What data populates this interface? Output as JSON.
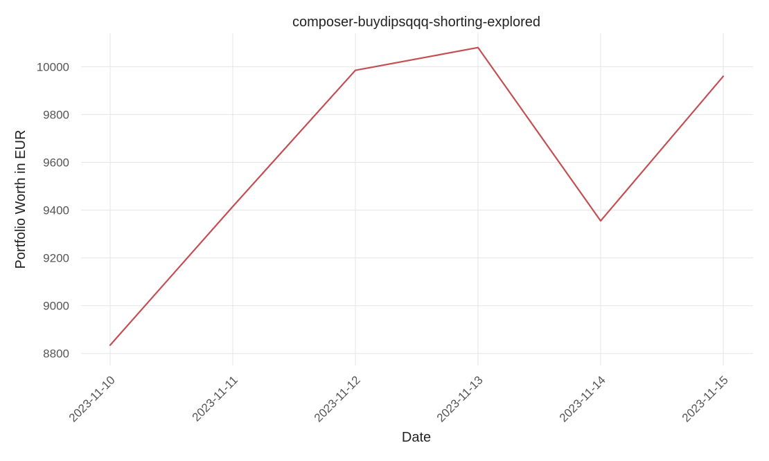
{
  "chart_data": {
    "type": "line",
    "title": "composer-buydipsqqq-shorting-explored",
    "xlabel": "Date",
    "ylabel": "Portfolio Worth in EUR",
    "x": [
      "2023-11-10",
      "2023-11-11",
      "2023-11-12",
      "2023-11-13",
      "2023-11-14",
      "2023-11-15"
    ],
    "series": [
      {
        "values": [
          8835,
          9415,
          9985,
          10080,
          9355,
          9960
        ],
        "color": "#c44e52"
      }
    ],
    "ylim": [
      8750,
      10140
    ],
    "y_ticks": [
      8800,
      9000,
      9200,
      9400,
      9600,
      9800,
      10000
    ],
    "grid": true
  }
}
